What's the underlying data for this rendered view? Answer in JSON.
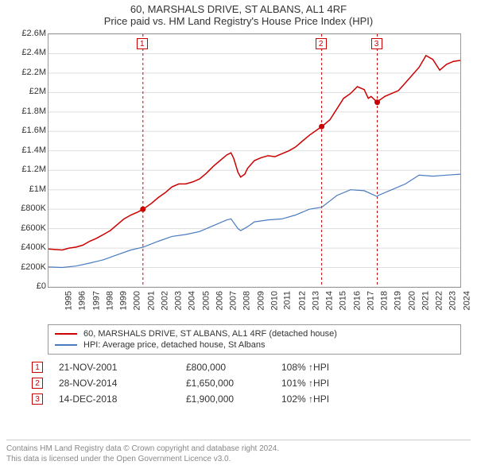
{
  "title": "60, MARSHALS DRIVE, ST ALBANS, AL1 4RF",
  "subtitle": "Price paid vs. HM Land Registry's House Price Index (HPI)",
  "chart": {
    "type": "line",
    "background_color": "#ffffff",
    "grid_color": "#dddddd",
    "axis_color": "#999999",
    "title_fontsize": 13,
    "label_fontsize": 11,
    "x": {
      "min": 1995,
      "max": 2025,
      "tick_start": 1995,
      "tick_step": 1
    },
    "y": {
      "min": 0,
      "max": 2600000,
      "tick_step": 200000,
      "tick_labels": [
        "£0",
        "£200K",
        "£400K",
        "£600K",
        "£800K",
        "£1M",
        "£1.2M",
        "£1.4M",
        "£1.6M",
        "£1.8M",
        "£2M",
        "£2.2M",
        "£2.4M",
        "£2.6M"
      ]
    },
    "series": [
      {
        "id": "property",
        "label": "60, MARSHALS DRIVE, ST ALBANS, AL1 4RF (detached house)",
        "color": "#cc0000",
        "line_width": 1.5,
        "data": [
          [
            1995.0,
            390000
          ],
          [
            1995.5,
            385000
          ],
          [
            1996.0,
            380000
          ],
          [
            1996.5,
            400000
          ],
          [
            1997.0,
            410000
          ],
          [
            1997.5,
            430000
          ],
          [
            1998.0,
            470000
          ],
          [
            1998.5,
            500000
          ],
          [
            1999.0,
            540000
          ],
          [
            1999.5,
            580000
          ],
          [
            2000.0,
            640000
          ],
          [
            2000.5,
            700000
          ],
          [
            2001.0,
            740000
          ],
          [
            2001.5,
            770000
          ],
          [
            2001.88,
            800000
          ],
          [
            2002.0,
            810000
          ],
          [
            2002.5,
            860000
          ],
          [
            2003.0,
            920000
          ],
          [
            2003.5,
            970000
          ],
          [
            2004.0,
            1030000
          ],
          [
            2004.5,
            1060000
          ],
          [
            2005.0,
            1060000
          ],
          [
            2005.5,
            1080000
          ],
          [
            2006.0,
            1110000
          ],
          [
            2006.5,
            1170000
          ],
          [
            2007.0,
            1240000
          ],
          [
            2007.5,
            1300000
          ],
          [
            2008.0,
            1360000
          ],
          [
            2008.3,
            1380000
          ],
          [
            2008.5,
            1320000
          ],
          [
            2008.8,
            1180000
          ],
          [
            2009.0,
            1130000
          ],
          [
            2009.3,
            1160000
          ],
          [
            2009.5,
            1220000
          ],
          [
            2010.0,
            1300000
          ],
          [
            2010.5,
            1330000
          ],
          [
            2011.0,
            1350000
          ],
          [
            2011.5,
            1340000
          ],
          [
            2012.0,
            1370000
          ],
          [
            2012.5,
            1400000
          ],
          [
            2013.0,
            1440000
          ],
          [
            2013.5,
            1500000
          ],
          [
            2014.0,
            1560000
          ],
          [
            2014.5,
            1610000
          ],
          [
            2014.9,
            1650000
          ],
          [
            2015.0,
            1660000
          ],
          [
            2015.5,
            1720000
          ],
          [
            2016.0,
            1830000
          ],
          [
            2016.5,
            1940000
          ],
          [
            2017.0,
            1990000
          ],
          [
            2017.5,
            2060000
          ],
          [
            2018.0,
            2030000
          ],
          [
            2018.3,
            1940000
          ],
          [
            2018.5,
            1960000
          ],
          [
            2018.95,
            1900000
          ],
          [
            2019.0,
            1910000
          ],
          [
            2019.5,
            1960000
          ],
          [
            2020.0,
            1990000
          ],
          [
            2020.5,
            2020000
          ],
          [
            2021.0,
            2100000
          ],
          [
            2021.5,
            2180000
          ],
          [
            2022.0,
            2260000
          ],
          [
            2022.5,
            2380000
          ],
          [
            2023.0,
            2340000
          ],
          [
            2023.5,
            2230000
          ],
          [
            2024.0,
            2290000
          ],
          [
            2024.5,
            2320000
          ],
          [
            2025.0,
            2330000
          ]
        ]
      },
      {
        "id": "hpi",
        "label": "HPI: Average price, detached house, St Albans",
        "color": "#4a7bbf",
        "line_width": 1.2,
        "data": [
          [
            1995.0,
            205000
          ],
          [
            1996.0,
            200000
          ],
          [
            1997.0,
            215000
          ],
          [
            1998.0,
            245000
          ],
          [
            1999.0,
            280000
          ],
          [
            2000.0,
            330000
          ],
          [
            2001.0,
            380000
          ],
          [
            2001.88,
            410000
          ],
          [
            2002.0,
            415000
          ],
          [
            2003.0,
            470000
          ],
          [
            2004.0,
            520000
          ],
          [
            2005.0,
            540000
          ],
          [
            2006.0,
            570000
          ],
          [
            2007.0,
            630000
          ],
          [
            2008.0,
            690000
          ],
          [
            2008.3,
            700000
          ],
          [
            2008.8,
            600000
          ],
          [
            2009.0,
            580000
          ],
          [
            2009.5,
            620000
          ],
          [
            2010.0,
            670000
          ],
          [
            2011.0,
            690000
          ],
          [
            2012.0,
            700000
          ],
          [
            2013.0,
            740000
          ],
          [
            2014.0,
            800000
          ],
          [
            2014.9,
            820000
          ],
          [
            2015.0,
            830000
          ],
          [
            2016.0,
            940000
          ],
          [
            2017.0,
            1000000
          ],
          [
            2018.0,
            990000
          ],
          [
            2018.95,
            930000
          ],
          [
            2019.0,
            940000
          ],
          [
            2020.0,
            1000000
          ],
          [
            2021.0,
            1060000
          ],
          [
            2022.0,
            1150000
          ],
          [
            2023.0,
            1140000
          ],
          [
            2024.0,
            1150000
          ],
          [
            2025.0,
            1160000
          ]
        ]
      }
    ],
    "markers": [
      {
        "n": "1",
        "x": 2001.88,
        "y": 800000
      },
      {
        "n": "2",
        "x": 2014.9,
        "y": 1650000
      },
      {
        "n": "3",
        "x": 2018.95,
        "y": 1900000
      }
    ],
    "marker_style": {
      "border_color": "#cc0000",
      "text_color": "#cc0000",
      "background_color": "#ffffff",
      "fontsize": 10
    }
  },
  "legend": {
    "border_color": "#999999",
    "fontsize": 11
  },
  "transactions": [
    {
      "n": "1",
      "date": "21-NOV-2001",
      "price": "£800,000",
      "rel": "108%",
      "suffix": "HPI"
    },
    {
      "n": "2",
      "date": "28-NOV-2014",
      "price": "£1,650,000",
      "rel": "101%",
      "suffix": "HPI"
    },
    {
      "n": "3",
      "date": "14-DEC-2018",
      "price": "£1,900,000",
      "rel": "102%",
      "suffix": "HPI"
    }
  ],
  "footer": {
    "line1": "Contains HM Land Registry data © Crown copyright and database right 2024.",
    "line2": "This data is licensed under the Open Government Licence v3.0.",
    "color": "#888888",
    "fontsize": 10
  }
}
